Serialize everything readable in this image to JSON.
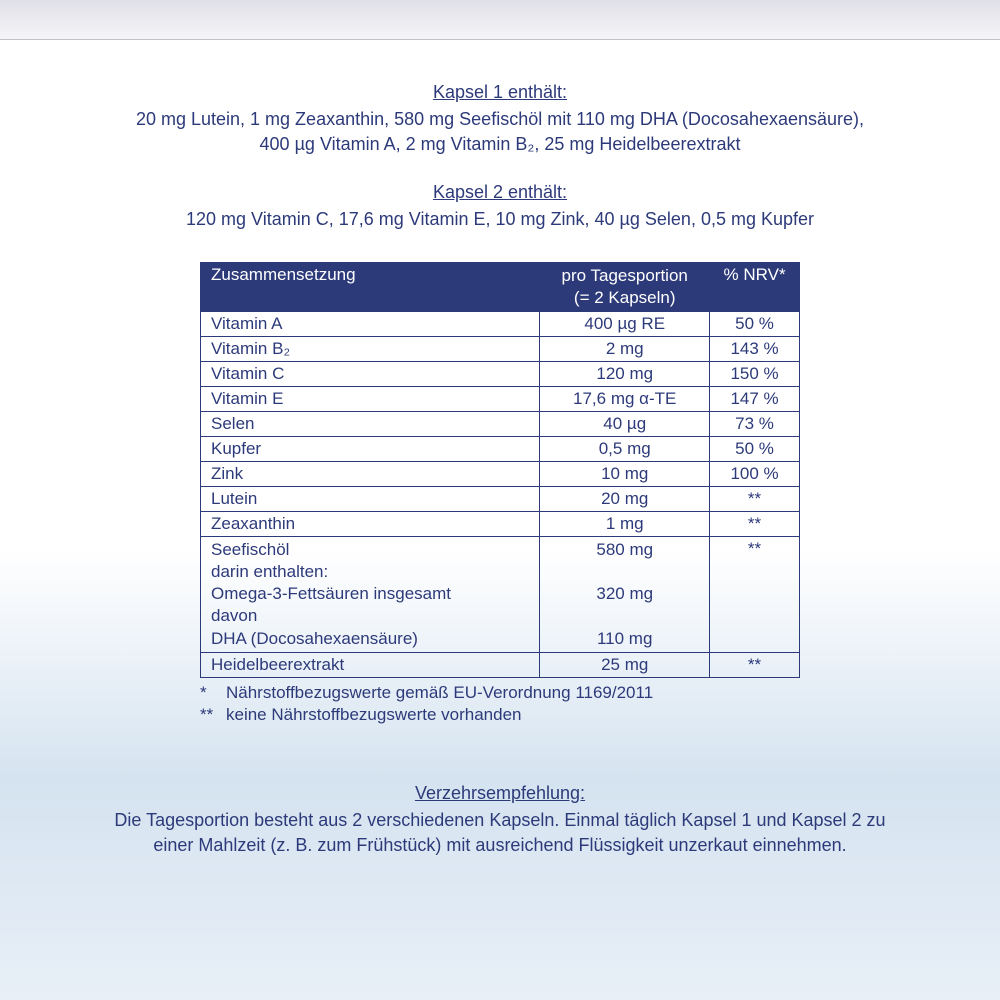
{
  "colors": {
    "text": "#2d3a7a",
    "header_bg": "#2d3a7a",
    "header_text": "#ffffff",
    "border": "#2d3a7a",
    "bg_top": "#ffffff",
    "bg_bottom": "#d5e3f0"
  },
  "kapsel1": {
    "heading": "Kapsel 1 enthält:",
    "line1": "20 mg Lutein, 1 mg Zeaxanthin, 580 mg Seefischöl mit 110 mg DHA (Docosahexaensäure),",
    "line2": "400 µg Vitamin A, 2 mg Vitamin B₂, 25 mg Heidelbeerextrakt"
  },
  "kapsel2": {
    "heading": "Kapsel 2 enthält:",
    "line1": "120 mg Vitamin C, 17,6 mg Vitamin E, 10 mg Zink, 40 µg Selen, 0,5 mg Kupfer"
  },
  "table": {
    "headers": {
      "col1": "Zusammensetzung",
      "col2_l1": "pro Tagesportion",
      "col2_l2": "(= 2 Kapseln)",
      "col3": "% NRV*"
    },
    "rows": [
      {
        "name": "Vitamin A",
        "amount": "400  µg RE",
        "nrv": "50 %"
      },
      {
        "name": "Vitamin B₂",
        "amount": "2 mg",
        "nrv": "143 %"
      },
      {
        "name": "Vitamin C",
        "amount": "120 mg",
        "nrv": "150 %"
      },
      {
        "name": "Vitamin E",
        "amount": "17,6 mg α-TE",
        "nrv": "147 %"
      },
      {
        "name": "Selen",
        "amount": "40  µg",
        "nrv": "73 %"
      },
      {
        "name": "Kupfer",
        "amount": "0,5 mg",
        "nrv": "50 %"
      },
      {
        "name": "Zink",
        "amount": "10 mg",
        "nrv": "100 %"
      },
      {
        "name": "Lutein",
        "amount": "20 mg",
        "nrv": "**"
      },
      {
        "name": "Zeaxanthin",
        "amount": "1 mg",
        "nrv": "**"
      }
    ],
    "seefisch": {
      "l1": "Seefischöl",
      "l2": "darin enthalten:",
      "l3": "Omega-3-Fettsäuren insgesamt",
      "l4": "davon",
      "l5": "DHA (Docosahexaensäure)",
      "a1": "580 mg",
      "a2": "320 mg",
      "a3": "110 mg",
      "nrv": "**"
    },
    "last": {
      "name": "Heidelbeerextrakt",
      "amount": "25 mg",
      "nrv": "**"
    }
  },
  "footnotes": {
    "f1_star": "*",
    "f1_text": "Nährstoffbezugswerte gemäß EU-Verordnung 1169/2011",
    "f2_star": "**",
    "f2_text": "keine Nährstoffbezugswerte vorhanden"
  },
  "verzehr": {
    "heading": "Verzehrsempfehlung:",
    "line1": "Die Tagesportion besteht aus 2 verschiedenen Kapseln. Einmal täglich Kapsel 1 und Kapsel 2 zu",
    "line2": "einer Mahlzeit (z. B. zum Frühstück) mit ausreichend Flüssigkeit unzerkaut einnehmen."
  }
}
